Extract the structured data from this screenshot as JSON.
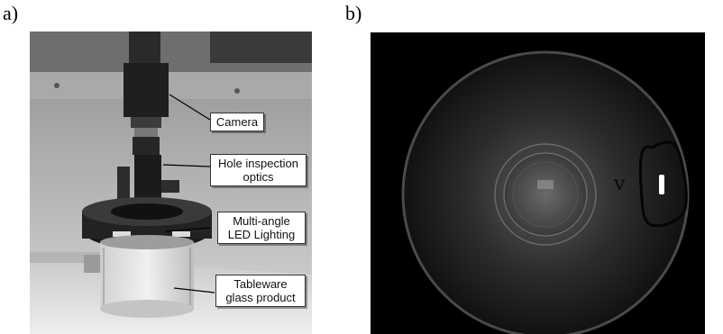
{
  "panels": {
    "a": {
      "label": "a)",
      "callouts": {
        "camera": "Camera",
        "optics_line1": "Hole inspection",
        "optics_line2": "optics",
        "lighting_line1": "Multi-angle",
        "lighting_line2": "LED Lighting",
        "glass_line1": "Tableware",
        "glass_line2": "glass product"
      }
    },
    "b": {
      "label": "b)",
      "handwriting": "v"
    }
  }
}
